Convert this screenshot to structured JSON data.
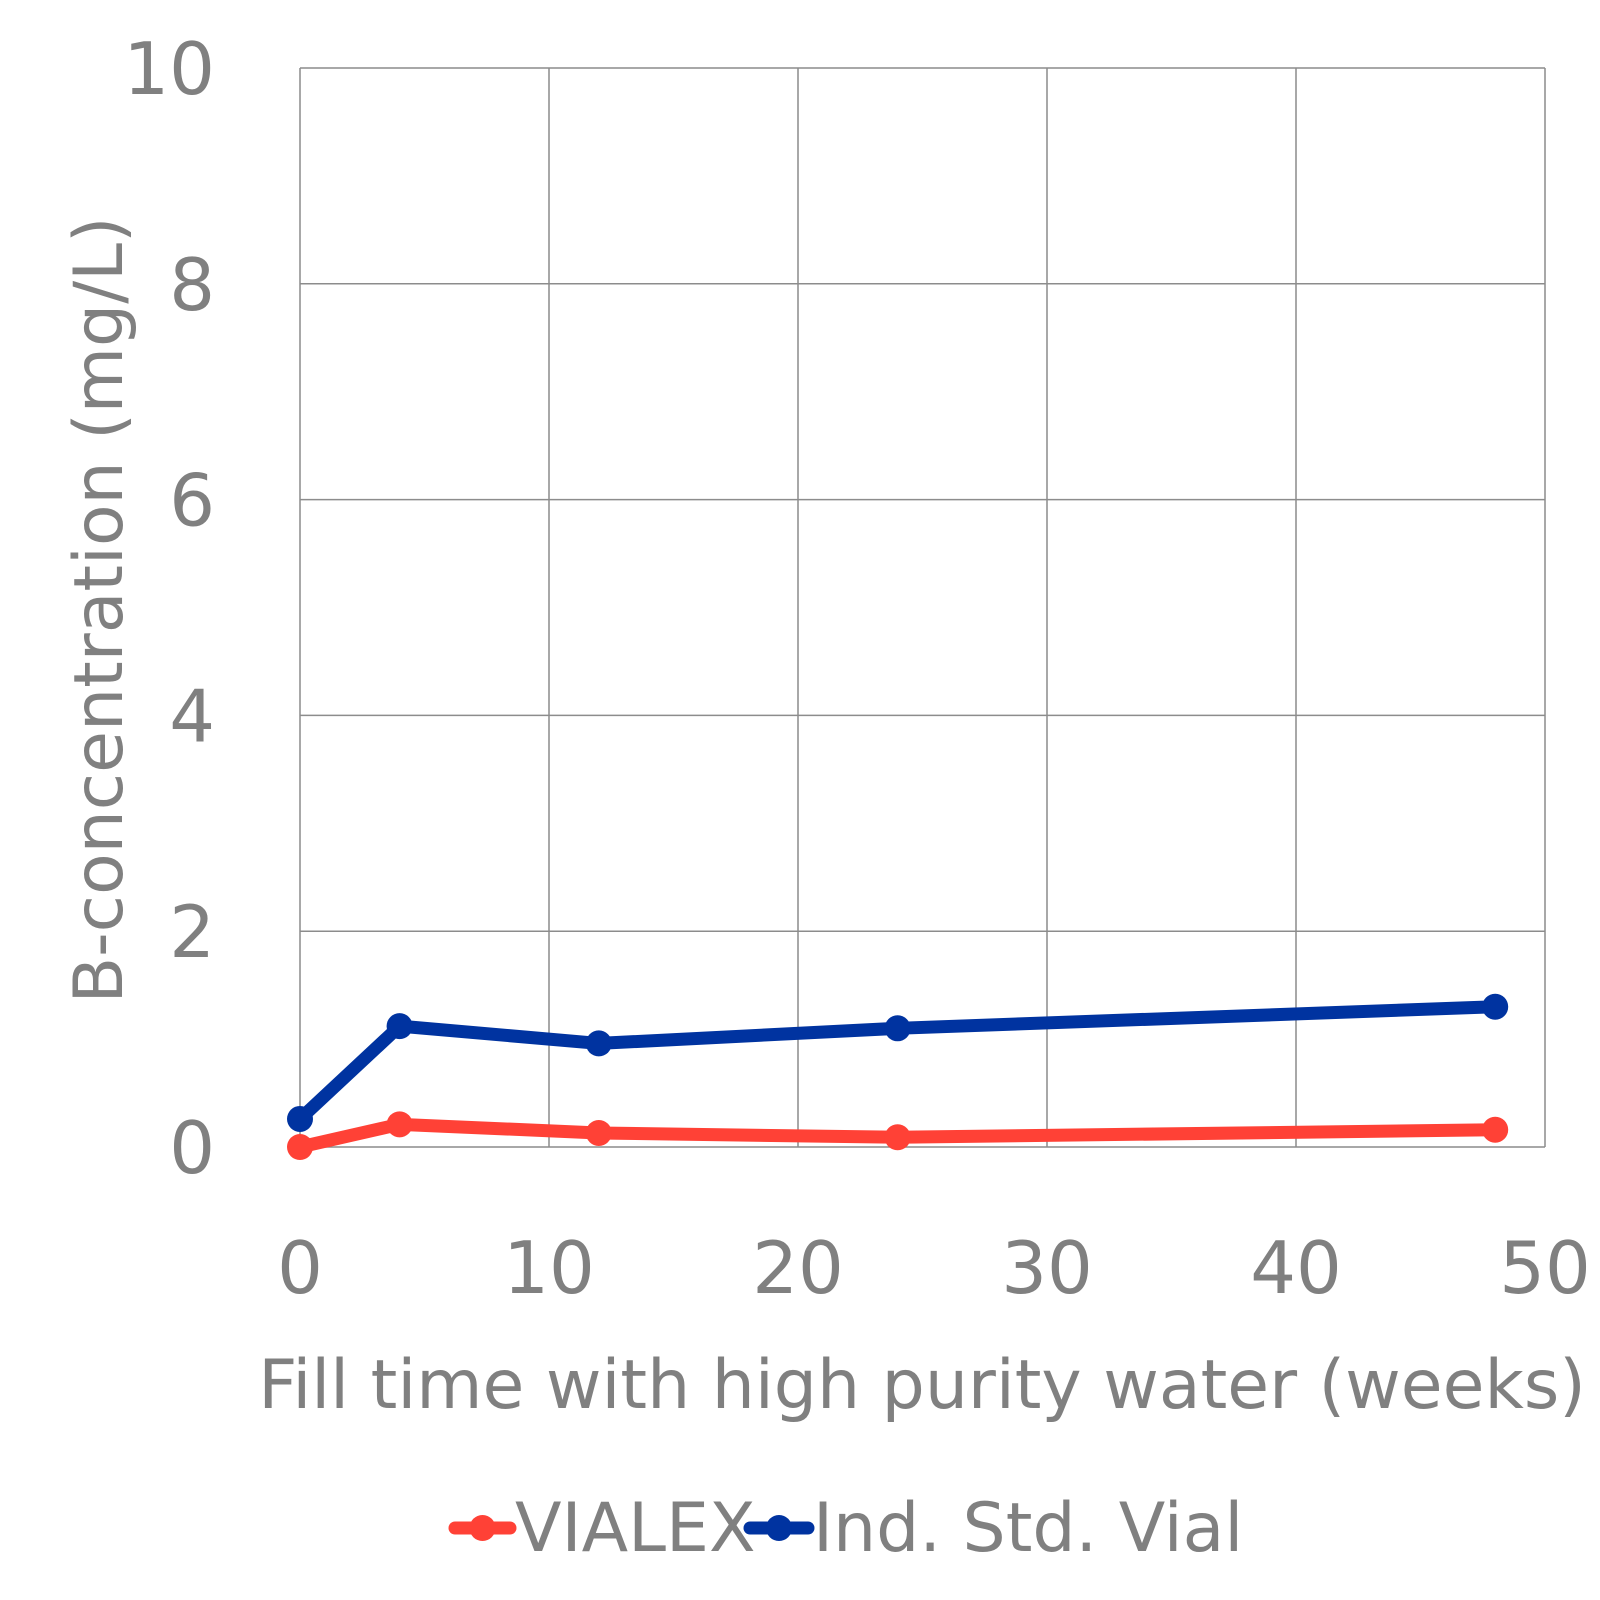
{
  "chart_data": {
    "type": "line",
    "title": "",
    "xlabel": "Fill time with high purity water (weeks)",
    "ylabel": "B-concentration (mg/L)",
    "xlim": [
      0,
      50
    ],
    "ylim": [
      0,
      10
    ],
    "xticks": [
      "0",
      "10",
      "20",
      "30",
      "40",
      "50"
    ],
    "yticks": [
      "0",
      "2",
      "4",
      "6",
      "8",
      "10"
    ],
    "grid": true,
    "legend_position": "bottom",
    "x": [
      0,
      4,
      12,
      24,
      48
    ],
    "series": [
      {
        "name": "VIALEX",
        "color": "#ff4136",
        "values": [
          0.0,
          0.21,
          0.13,
          0.09,
          0.16
        ]
      },
      {
        "name": "Ind. Std. Vial",
        "color": "#0033a0",
        "values": [
          0.26,
          1.12,
          0.96,
          1.1,
          1.3
        ]
      }
    ]
  }
}
